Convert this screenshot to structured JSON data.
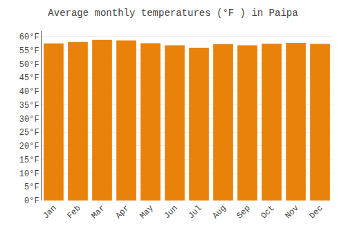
{
  "chart_data": {
    "type": "bar",
    "title": "Average monthly temperatures (°F ) in Paipa",
    "categories": [
      "Jan",
      "Feb",
      "Mar",
      "Apr",
      "May",
      "Jun",
      "Jul",
      "Aug",
      "Sep",
      "Oct",
      "Nov",
      "Dec"
    ],
    "values": [
      57.5,
      58.0,
      58.8,
      58.6,
      57.6,
      56.8,
      55.9,
      57.2,
      56.8,
      57.4,
      57.7,
      57.3
    ],
    "color": "#E8820A",
    "ylim": [
      0,
      62
    ],
    "yticks": [
      {
        "value": 0,
        "label": "0°F"
      },
      {
        "value": 5,
        "label": "5°F"
      },
      {
        "value": 10,
        "label": "10°F"
      },
      {
        "value": 15,
        "label": "15°F"
      },
      {
        "value": 20,
        "label": "20°F"
      },
      {
        "value": 25,
        "label": "25°F"
      },
      {
        "value": 30,
        "label": "30°F"
      },
      {
        "value": 35,
        "label": "35°F"
      },
      {
        "value": 40,
        "label": "40°F"
      },
      {
        "value": 45,
        "label": "45°F"
      },
      {
        "value": 50,
        "label": "50°F"
      },
      {
        "value": 55,
        "label": "55°F"
      },
      {
        "value": 60,
        "label": "60°F"
      }
    ],
    "grid": true
  }
}
